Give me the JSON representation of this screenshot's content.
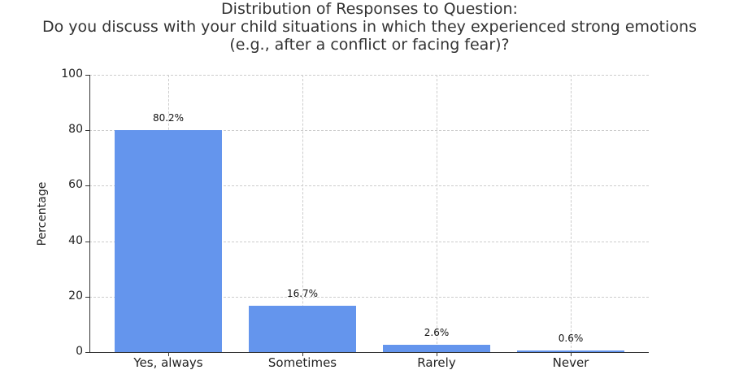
{
  "chart_data": {
    "type": "bar",
    "title": "Distribution of Responses to Question:\nDo you discuss with your child situations in which they experienced strong emotions\n(e.g., after a conflict or facing fear)?",
    "title_lines": [
      "Distribution of Responses to Question:",
      "Do you discuss with your child situations in which they experienced strong emotions",
      "(e.g., after a conflict or facing fear)?"
    ],
    "categories": [
      "Yes, always",
      "Sometimes",
      "Rarely",
      "Never"
    ],
    "values": [
      80.2,
      16.7,
      2.6,
      0.6
    ],
    "value_labels": [
      "80.2%",
      "16.7%",
      "2.6%",
      "0.6%"
    ],
    "xlabel": "",
    "ylabel": "Percentage",
    "ylim": [
      0,
      100
    ],
    "yticks": [
      "0",
      "20",
      "40",
      "60",
      "80",
      "100"
    ],
    "grid": true,
    "bar_color": "#6495ed"
  }
}
